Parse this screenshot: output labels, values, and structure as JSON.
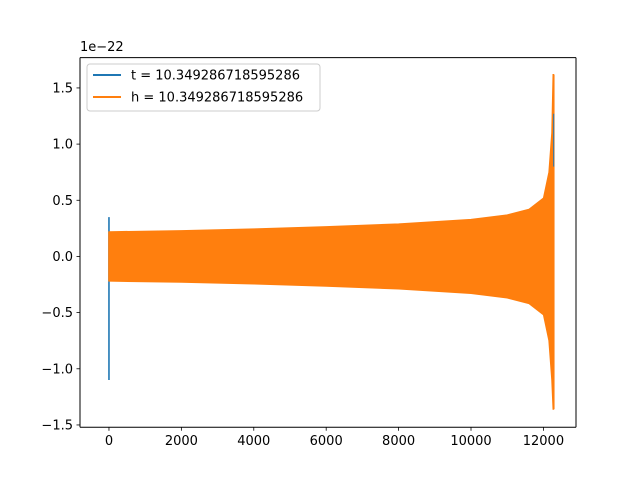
{
  "chart_data": {
    "type": "line",
    "title": "",
    "xlabel": "",
    "ylabel": "",
    "y_scale_label": "1e−22",
    "y_scale_factor": 1e-22,
    "xlim": [
      -800,
      12900
    ],
    "ylim": [
      -1.52,
      1.77
    ],
    "x_ticks": [
      0,
      2000,
      4000,
      6000,
      8000,
      10000,
      12000
    ],
    "x_tick_labels": [
      "0",
      "2000",
      "4000",
      "6000",
      "8000",
      "10000",
      "12000"
    ],
    "y_ticks": [
      -1.5,
      -1.0,
      -0.5,
      0.0,
      0.5,
      1.0,
      1.5
    ],
    "y_tick_labels": [
      "−1.5",
      "−1.0",
      "−0.5",
      "0.0",
      "0.5",
      "1.0",
      "1.5"
    ],
    "grid": false,
    "legend_position": "top-left",
    "series": [
      {
        "name": "t = 10.349286718595286",
        "color": "#1f77b4",
        "role": "spikes",
        "segments": [
          {
            "x": 0,
            "y_min": -1.1,
            "y_max": 0.35
          },
          {
            "x": 12270,
            "y_min": -1.2,
            "y_max": 1.27
          }
        ]
      },
      {
        "name": "h = 10.349286718595286",
        "color": "#ff7f0e",
        "role": "oscillation-envelope",
        "x_range": [
          0,
          12280
        ],
        "envelope": [
          {
            "x": 0,
            "upper": 0.22,
            "lower": -0.22
          },
          {
            "x": 2000,
            "upper": 0.23,
            "lower": -0.23
          },
          {
            "x": 4000,
            "upper": 0.245,
            "lower": -0.245
          },
          {
            "x": 6000,
            "upper": 0.265,
            "lower": -0.265
          },
          {
            "x": 8000,
            "upper": 0.29,
            "lower": -0.29
          },
          {
            "x": 10000,
            "upper": 0.33,
            "lower": -0.33
          },
          {
            "x": 11000,
            "upper": 0.37,
            "lower": -0.37
          },
          {
            "x": 11600,
            "upper": 0.42,
            "lower": -0.42
          },
          {
            "x": 12000,
            "upper": 0.52,
            "lower": -0.52
          },
          {
            "x": 12150,
            "upper": 0.75,
            "lower": -0.75
          },
          {
            "x": 12230,
            "upper": 1.1,
            "lower": -1.1
          },
          {
            "x": 12265,
            "upper": 1.62,
            "lower": -1.36
          },
          {
            "x": 12280,
            "upper": 1.62,
            "lower": -1.36
          }
        ]
      }
    ]
  }
}
